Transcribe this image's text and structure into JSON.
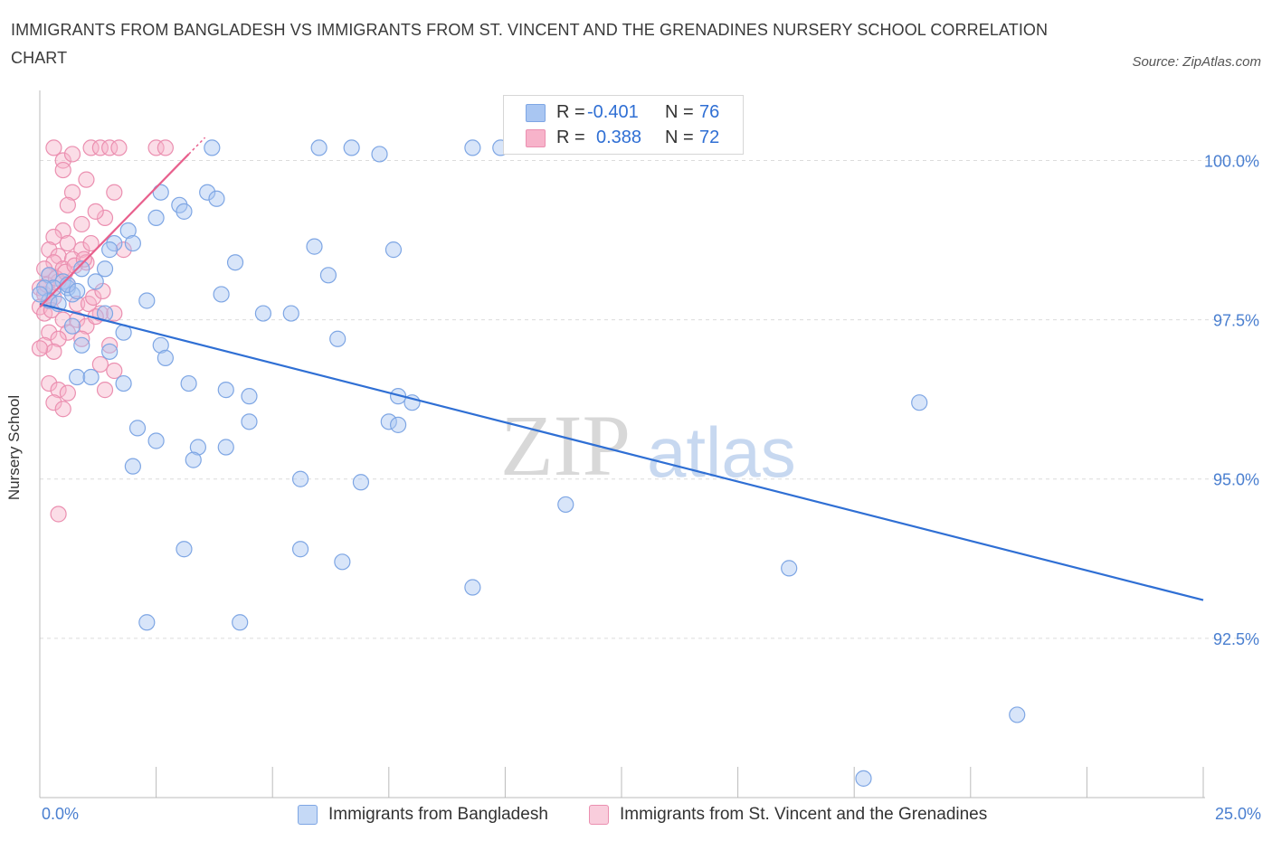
{
  "title": "IMMIGRANTS FROM BANGLADESH VS IMMIGRANTS FROM ST. VINCENT AND THE GRENADINES NURSERY SCHOOL CORRELATION CHART",
  "source": "Source: ZipAtlas.com",
  "watermark": {
    "zip": "ZIP",
    "atlas": "atlas"
  },
  "legend": {
    "r_label": "R =",
    "n_label": "N =",
    "series": [
      {
        "r": "-0.401",
        "n": "76"
      },
      {
        "r": "0.388",
        "n": "72"
      }
    ]
  },
  "x_axis": {
    "min_label": "0.0%",
    "max_label": "25.0%"
  },
  "colors": {
    "blue_fill": "#a9c6f2",
    "blue_stroke": "#7ea6e4",
    "blue_line": "#2f6fd4",
    "pink_fill": "#f7b3ca",
    "pink_stroke": "#eb8fb0",
    "pink_line": "#e8608d",
    "grid": "#dcdcdc",
    "axis_text": "#4a7fd0"
  },
  "chart_data": {
    "type": "scatter",
    "title": "IMMIGRANTS FROM BANGLADESH VS IMMIGRANTS FROM ST. VINCENT AND THE GRENADINES NURSERY SCHOOL CORRELATION CHART",
    "xlabel": "",
    "ylabel": "Nursery School",
    "xlim": [
      0,
      25
    ],
    "ylim": [
      90.0,
      101.1
    ],
    "y_ticks": [
      {
        "value": 100.0,
        "label": "100.0%"
      },
      {
        "value": 97.5,
        "label": "97.5%"
      },
      {
        "value": 95.0,
        "label": "95.0%"
      },
      {
        "value": 92.5,
        "label": "92.5%"
      }
    ],
    "series": [
      {
        "name": "Immigrants from Bangladesh",
        "color": "#a9c6f2",
        "trend": {
          "x": [
            0.0,
            25.0
          ],
          "y": [
            97.75,
            93.1
          ]
        },
        "points": [
          [
            3.7,
            100.2
          ],
          [
            6.0,
            100.2
          ],
          [
            6.7,
            100.2
          ],
          [
            7.3,
            100.1
          ],
          [
            9.3,
            100.2
          ],
          [
            9.9,
            100.2
          ],
          [
            2.6,
            99.5
          ],
          [
            3.6,
            99.5
          ],
          [
            3.0,
            99.3
          ],
          [
            3.8,
            99.4
          ],
          [
            3.1,
            99.2
          ],
          [
            2.5,
            99.1
          ],
          [
            1.9,
            98.9
          ],
          [
            1.6,
            98.7
          ],
          [
            2.0,
            98.7
          ],
          [
            1.5,
            98.6
          ],
          [
            5.9,
            98.65
          ],
          [
            7.6,
            98.6
          ],
          [
            4.2,
            98.4
          ],
          [
            6.2,
            98.2
          ],
          [
            0.2,
            98.2
          ],
          [
            0.5,
            98.1
          ],
          [
            0.3,
            98.0
          ],
          [
            0.1,
            98.0
          ],
          [
            0.9,
            98.3
          ],
          [
            1.4,
            98.3
          ],
          [
            1.2,
            98.1
          ],
          [
            0.6,
            98.0
          ],
          [
            0.7,
            97.9
          ],
          [
            0.2,
            97.8
          ],
          [
            2.3,
            97.8
          ],
          [
            3.9,
            97.9
          ],
          [
            4.8,
            97.6
          ],
          [
            5.4,
            97.6
          ],
          [
            1.4,
            97.6
          ],
          [
            0.0,
            97.9
          ],
          [
            0.7,
            97.4
          ],
          [
            2.6,
            97.1
          ],
          [
            1.8,
            97.3
          ],
          [
            0.9,
            97.1
          ],
          [
            1.5,
            97.0
          ],
          [
            6.4,
            97.2
          ],
          [
            0.8,
            96.6
          ],
          [
            1.1,
            96.6
          ],
          [
            1.8,
            96.5
          ],
          [
            2.7,
            96.9
          ],
          [
            3.2,
            96.5
          ],
          [
            4.0,
            96.4
          ],
          [
            4.5,
            96.3
          ],
          [
            7.7,
            96.3
          ],
          [
            8.0,
            96.2
          ],
          [
            18.9,
            96.2
          ],
          [
            2.1,
            95.8
          ],
          [
            2.5,
            95.6
          ],
          [
            3.4,
            95.5
          ],
          [
            4.0,
            95.5
          ],
          [
            3.3,
            95.3
          ],
          [
            4.5,
            95.9
          ],
          [
            7.5,
            95.9
          ],
          [
            7.7,
            95.85
          ],
          [
            2.0,
            95.2
          ],
          [
            5.6,
            95.0
          ],
          [
            6.9,
            94.95
          ],
          [
            11.3,
            94.6
          ],
          [
            3.1,
            93.9
          ],
          [
            5.6,
            93.9
          ],
          [
            6.5,
            93.7
          ],
          [
            9.3,
            93.3
          ],
          [
            16.1,
            93.6
          ],
          [
            2.3,
            92.75
          ],
          [
            4.3,
            92.75
          ],
          [
            21.0,
            91.3
          ],
          [
            17.7,
            90.3
          ],
          [
            0.6,
            98.05
          ],
          [
            0.8,
            97.95
          ],
          [
            0.4,
            97.75
          ]
        ]
      },
      {
        "name": "Immigrants from St. Vincent and the Grenadines",
        "color": "#f7b3ca",
        "trend": {
          "x": [
            0.0,
            3.2
          ],
          "y": [
            97.7,
            100.1
          ]
        },
        "points": [
          [
            0.3,
            100.2
          ],
          [
            0.5,
            100.0
          ],
          [
            0.7,
            100.1
          ],
          [
            1.1,
            100.2
          ],
          [
            1.3,
            100.2
          ],
          [
            1.5,
            100.2
          ],
          [
            1.7,
            100.2
          ],
          [
            2.5,
            100.2
          ],
          [
            2.7,
            100.2
          ],
          [
            0.5,
            99.85
          ],
          [
            1.0,
            99.7
          ],
          [
            0.7,
            99.5
          ],
          [
            1.6,
            99.5
          ],
          [
            0.6,
            99.3
          ],
          [
            1.4,
            99.1
          ],
          [
            1.2,
            99.2
          ],
          [
            0.9,
            99.0
          ],
          [
            0.5,
            98.9
          ],
          [
            0.3,
            98.8
          ],
          [
            0.6,
            98.7
          ],
          [
            0.9,
            98.6
          ],
          [
            0.2,
            98.6
          ],
          [
            1.1,
            98.7
          ],
          [
            1.8,
            98.6
          ],
          [
            0.4,
            98.5
          ],
          [
            0.7,
            98.45
          ],
          [
            1.0,
            98.4
          ],
          [
            0.3,
            98.4
          ],
          [
            0.5,
            98.3
          ],
          [
            0.1,
            98.3
          ],
          [
            0.2,
            98.2
          ],
          [
            0.4,
            98.1
          ],
          [
            0.6,
            98.05
          ],
          [
            0.0,
            98.0
          ],
          [
            0.1,
            97.9
          ],
          [
            0.3,
            97.85
          ],
          [
            0.2,
            97.8
          ],
          [
            0.0,
            97.7
          ],
          [
            0.1,
            97.6
          ],
          [
            0.5,
            97.5
          ],
          [
            0.8,
            97.5
          ],
          [
            1.0,
            97.4
          ],
          [
            1.3,
            97.6
          ],
          [
            1.6,
            97.6
          ],
          [
            0.6,
            97.3
          ],
          [
            0.9,
            97.2
          ],
          [
            0.2,
            97.3
          ],
          [
            0.4,
            97.2
          ],
          [
            0.1,
            97.1
          ],
          [
            0.3,
            97.0
          ],
          [
            0.0,
            97.05
          ],
          [
            1.5,
            97.1
          ],
          [
            1.3,
            96.8
          ],
          [
            1.6,
            96.7
          ],
          [
            0.2,
            96.5
          ],
          [
            0.4,
            96.4
          ],
          [
            0.6,
            96.35
          ],
          [
            0.3,
            96.2
          ],
          [
            0.5,
            96.1
          ],
          [
            1.4,
            96.4
          ],
          [
            0.4,
            94.45
          ],
          [
            1.2,
            97.55
          ],
          [
            0.8,
            97.75
          ],
          [
            1.05,
            97.75
          ],
          [
            0.15,
            98.05
          ],
          [
            0.35,
            98.15
          ],
          [
            0.55,
            98.25
          ],
          [
            0.75,
            98.35
          ],
          [
            0.95,
            98.45
          ],
          [
            1.15,
            97.85
          ],
          [
            1.35,
            97.95
          ],
          [
            0.25,
            97.65
          ]
        ]
      }
    ]
  },
  "bottom_legend": [
    "Immigrants from Bangladesh",
    "Immigrants from St. Vincent and the Grenadines"
  ]
}
